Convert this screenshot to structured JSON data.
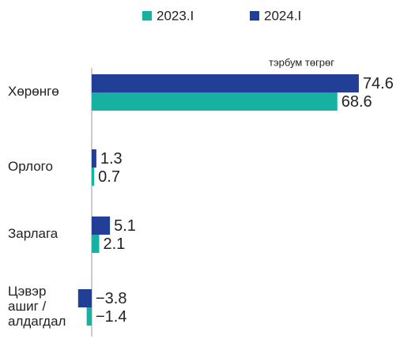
{
  "chart_data": {
    "type": "bar",
    "orientation": "horizontal",
    "unit_label": "тэрбум төгрөг",
    "categories": [
      "Хөрөнгө",
      "Орлого",
      "Зарлага",
      "Цэвэр ашиг / алдагдал"
    ],
    "series": [
      {
        "name": "2024.I",
        "color": "#223f98",
        "values": [
          74.6,
          1.3,
          5.1,
          -3.8
        ],
        "value_labels": [
          "74.6",
          "1.3",
          "5.1",
          "−3.8"
        ]
      },
      {
        "name": "2023.I",
        "color": "#17b1a1",
        "values": [
          68.6,
          0.7,
          2.1,
          -1.4
        ],
        "value_labels": [
          "68.6",
          "0.7",
          "2.1",
          "−1.4"
        ]
      }
    ],
    "legend_order": [
      1,
      0
    ],
    "legend": "top"
  }
}
